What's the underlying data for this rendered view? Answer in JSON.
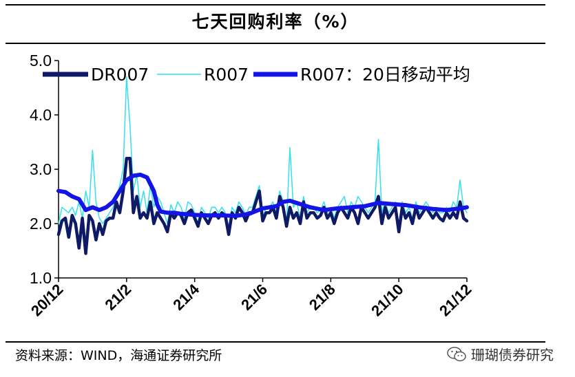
{
  "title": "七天回购利率（%）",
  "footer": "资料来源：WIND，海通证券研究所",
  "watermark": {
    "text": "珊瑚债券研究",
    "icon": "wechat-icon"
  },
  "colors": {
    "dr007": "#0e1a66",
    "r007": "#33e0f0",
    "ma20": "#1414e6",
    "axis": "#000000"
  },
  "chart_data": {
    "type": "line",
    "title": "七天回购利率（%）",
    "ylabel": "",
    "xlabel": "",
    "ylim": [
      1.0,
      5.0
    ],
    "yticks": [
      "1.0",
      "2.0",
      "3.0",
      "4.0",
      "5.0"
    ],
    "xticks": [
      "20/12",
      "21/2",
      "21/4",
      "21/6",
      "21/8",
      "21/10",
      "21/12"
    ],
    "xlim": [
      0,
      120
    ],
    "legend_position": "top",
    "series": [
      {
        "name": "DR007",
        "x": [
          0,
          1,
          2,
          3,
          4,
          5,
          6,
          7,
          8,
          9,
          10,
          11,
          12,
          13,
          14,
          15,
          16,
          17,
          18,
          19,
          20,
          21,
          22,
          23,
          24,
          25,
          26,
          27,
          28,
          29,
          30,
          31,
          32,
          33,
          34,
          35,
          36,
          37,
          38,
          39,
          40,
          41,
          42,
          43,
          44,
          45,
          46,
          47,
          48,
          49,
          50,
          51,
          52,
          53,
          54,
          55,
          56,
          57,
          58,
          59,
          60,
          61,
          62,
          63,
          64,
          65,
          66,
          67,
          68,
          69,
          70,
          71,
          72,
          73,
          74,
          75,
          76,
          77,
          78,
          79,
          80,
          81,
          82,
          83,
          84,
          85,
          86,
          87,
          88,
          89,
          90,
          91,
          92,
          93,
          94,
          95,
          96,
          97,
          98,
          99,
          100,
          101,
          102,
          103,
          104,
          105,
          106,
          107,
          108,
          109,
          110,
          111,
          112,
          113,
          114,
          115,
          116,
          117,
          118,
          119,
          120
        ],
        "values": [
          1.8,
          2.05,
          2.1,
          1.75,
          2.15,
          2.0,
          1.55,
          2.1,
          1.45,
          2.15,
          2.05,
          1.7,
          2.0,
          1.8,
          2.05,
          2.1,
          2.1,
          2.4,
          2.2,
          2.6,
          3.2,
          3.2,
          2.2,
          2.5,
          2.1,
          2.2,
          2.1,
          2.4,
          2.0,
          2.2,
          2.1,
          2.0,
          1.85,
          2.2,
          2.1,
          2.2,
          2.15,
          2.0,
          2.2,
          2.25,
          2.1,
          1.95,
          2.2,
          2.1,
          2.0,
          2.15,
          2.2,
          2.1,
          2.2,
          2.15,
          1.8,
          2.2,
          2.1,
          2.3,
          2.2,
          2.05,
          2.2,
          2.2,
          2.4,
          2.6,
          2.05,
          2.2,
          2.2,
          2.3,
          2.1,
          2.5,
          2.3,
          1.95,
          2.3,
          2.1,
          2.2,
          2.0,
          2.4,
          2.1,
          2.2,
          2.2,
          2.1,
          2.15,
          2.3,
          2.1,
          2.2,
          2.0,
          2.2,
          2.3,
          2.2,
          2.1,
          2.3,
          2.2,
          2.0,
          2.3,
          2.2,
          2.1,
          2.2,
          2.3,
          2.5,
          2.0,
          2.3,
          2.1,
          2.2,
          2.3,
          1.85,
          2.3,
          2.1,
          2.2,
          2.0,
          2.3,
          2.1,
          2.2,
          2.3,
          2.2,
          2.1,
          2.2,
          2.1,
          2.05,
          2.2,
          2.1,
          2.2,
          2.1,
          2.4,
          2.1,
          2.05
        ]
      },
      {
        "name": "R007",
        "x": [
          0,
          1,
          2,
          3,
          4,
          5,
          6,
          7,
          8,
          9,
          10,
          11,
          12,
          13,
          14,
          15,
          16,
          17,
          18,
          19,
          20,
          21,
          22,
          23,
          24,
          25,
          26,
          27,
          28,
          29,
          30,
          31,
          32,
          33,
          34,
          35,
          36,
          37,
          38,
          39,
          40,
          41,
          42,
          43,
          44,
          45,
          46,
          47,
          48,
          49,
          50,
          51,
          52,
          53,
          54,
          55,
          56,
          57,
          58,
          59,
          60,
          61,
          62,
          63,
          64,
          65,
          66,
          67,
          68,
          69,
          70,
          71,
          72,
          73,
          74,
          75,
          76,
          77,
          78,
          79,
          80,
          81,
          82,
          83,
          84,
          85,
          86,
          87,
          88,
          89,
          90,
          91,
          92,
          93,
          94,
          95,
          96,
          97,
          98,
          99,
          100,
          101,
          102,
          103,
          104,
          105,
          106,
          107,
          108,
          109,
          110,
          111,
          112,
          113,
          114,
          115,
          116,
          117,
          118,
          119,
          120
        ],
        "values": [
          2.0,
          2.3,
          2.25,
          2.2,
          2.3,
          2.15,
          2.4,
          2.1,
          2.6,
          2.3,
          3.35,
          2.4,
          2.1,
          2.0,
          2.1,
          2.2,
          2.3,
          2.5,
          2.7,
          3.0,
          4.7,
          3.8,
          2.6,
          2.9,
          2.3,
          2.6,
          2.2,
          2.7,
          2.3,
          2.5,
          2.4,
          2.2,
          2.0,
          2.35,
          2.2,
          2.4,
          2.3,
          2.1,
          2.4,
          2.35,
          2.2,
          2.0,
          2.3,
          2.2,
          2.1,
          2.3,
          2.3,
          2.2,
          2.3,
          2.2,
          1.95,
          2.3,
          2.2,
          2.4,
          2.3,
          2.15,
          2.3,
          2.3,
          2.5,
          2.7,
          2.1,
          2.3,
          2.3,
          2.4,
          2.2,
          2.6,
          2.4,
          2.0,
          3.4,
          2.3,
          2.4,
          2.1,
          2.5,
          2.2,
          2.3,
          2.3,
          2.2,
          2.25,
          2.4,
          2.2,
          2.3,
          2.1,
          2.3,
          2.4,
          2.5,
          2.2,
          2.4,
          2.3,
          2.5,
          2.4,
          2.3,
          2.2,
          2.3,
          2.4,
          3.55,
          2.2,
          2.4,
          2.2,
          2.3,
          2.4,
          2.0,
          2.4,
          2.2,
          2.3,
          2.1,
          2.4,
          2.2,
          2.3,
          2.4,
          2.3,
          2.2,
          2.3,
          2.2,
          2.2,
          2.3,
          2.2,
          2.4,
          2.3,
          2.8,
          2.3,
          2.2
        ]
      },
      {
        "name": "R007：20日移动平均",
        "x": [
          0,
          2,
          4,
          6,
          8,
          10,
          12,
          14,
          16,
          18,
          20,
          22,
          24,
          26,
          28,
          29,
          30,
          32,
          34,
          36,
          40,
          44,
          48,
          52,
          56,
          60,
          64,
          66,
          68,
          70,
          74,
          78,
          82,
          86,
          90,
          94,
          98,
          102,
          106,
          110,
          114,
          118,
          120
        ],
        "values": [
          2.6,
          2.58,
          2.5,
          2.45,
          2.25,
          2.3,
          2.25,
          2.3,
          2.4,
          2.6,
          2.8,
          2.88,
          2.9,
          2.85,
          2.6,
          2.35,
          2.22,
          2.2,
          2.2,
          2.18,
          2.16,
          2.15,
          2.15,
          2.14,
          2.18,
          2.28,
          2.32,
          2.4,
          2.42,
          2.38,
          2.3,
          2.25,
          2.28,
          2.3,
          2.32,
          2.38,
          2.36,
          2.34,
          2.3,
          2.27,
          2.25,
          2.28,
          2.3
        ]
      }
    ]
  }
}
